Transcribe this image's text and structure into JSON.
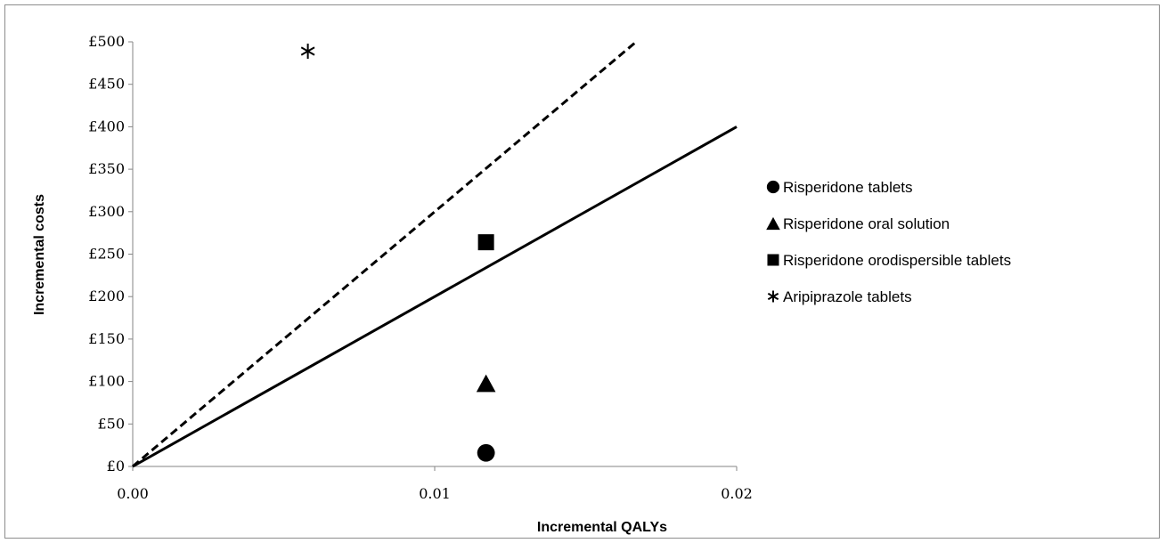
{
  "chart_data": {
    "type": "scatter",
    "xlabel": "Incremental QALYs",
    "ylabel": "Incremental costs",
    "xlim": [
      0,
      0.02
    ],
    "ylim": [
      0,
      500
    ],
    "x_ticks": [
      0,
      0.01,
      0.02
    ],
    "x_tick_labels": [
      "0.00",
      "0.01",
      "0.02"
    ],
    "y_ticks": [
      0,
      50,
      100,
      150,
      200,
      250,
      300,
      350,
      400,
      450,
      500
    ],
    "y_tick_labels": [
      "£0",
      "£50",
      "£100",
      "£150",
      "£200",
      "£250",
      "£300",
      "£350",
      "£400",
      "£450",
      "£500"
    ],
    "grid": false,
    "legend_position": "right",
    "series": [
      {
        "name": "Risperidone tablets",
        "marker": "circle",
        "x": 0.0117,
        "y": 16
      },
      {
        "name": "Risperidone oral solution",
        "marker": "triangle",
        "x": 0.0117,
        "y": 98
      },
      {
        "name": "Risperidone orodispersible tablets",
        "marker": "square",
        "x": 0.0117,
        "y": 264
      },
      {
        "name": "Aripiprazole tablets",
        "marker": "asterisk",
        "x": 0.0058,
        "y": 489
      }
    ],
    "threshold_lines": [
      {
        "style": "solid",
        "x": [
          0,
          0.02
        ],
        "y": [
          0,
          400
        ]
      },
      {
        "style": "dashed",
        "x": [
          0,
          0.01667
        ],
        "y": [
          0,
          500
        ]
      }
    ]
  }
}
